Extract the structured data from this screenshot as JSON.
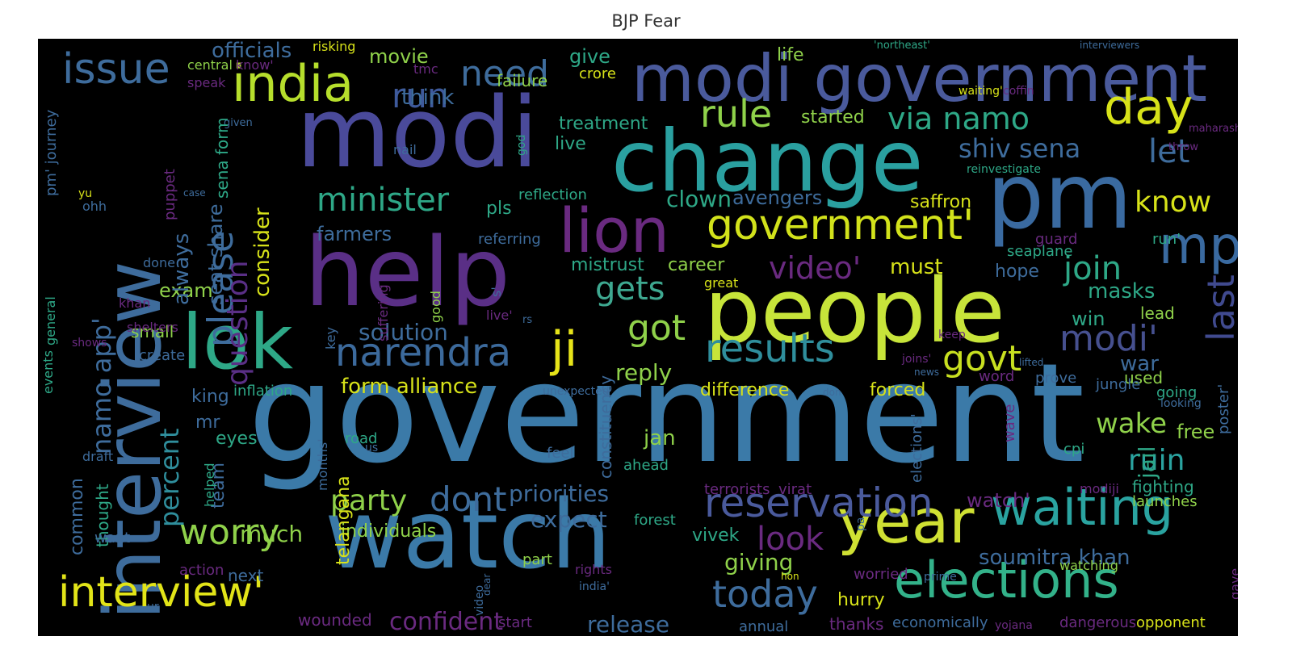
{
  "title": "BJP  Fear",
  "words": [
    {
      "text": "government",
      "color": "#3b7aa8"
    },
    {
      "text": "modi",
      "color": "#4a4a9a"
    },
    {
      "text": "help",
      "color": "#5a2f86"
    },
    {
      "text": "people",
      "color": "#c7e43a"
    },
    {
      "text": "watch",
      "color": "#3b7aa8"
    },
    {
      "text": "change",
      "color": "#2aa0a0"
    },
    {
      "text": "pm",
      "color": "#3a6aa0"
    },
    {
      "text": "interview",
      "color": "#3e6c9c"
    },
    {
      "text": "lok",
      "color": "#2ea887"
    },
    {
      "text": "modi government",
      "color": "#4a5a9c"
    },
    {
      "text": "year",
      "color": "#cfe033"
    },
    {
      "text": "elections",
      "color": "#33b28a"
    },
    {
      "text": "lion",
      "color": "#6a2a80"
    },
    {
      "text": "waiting",
      "color": "#2aa3a0"
    },
    {
      "text": "mp",
      "color": "#3a6aa0"
    },
    {
      "text": "india",
      "color": "#b6de2c"
    },
    {
      "text": "ji",
      "color": "#e7e419"
    },
    {
      "text": "interview'",
      "color": "#e2e418"
    },
    {
      "text": "government'",
      "color": "#d2e21b"
    },
    {
      "text": "day",
      "color": "#d7e219"
    },
    {
      "text": "results",
      "color": "#2f8e9c"
    },
    {
      "text": "issue",
      "color": "#3e6c9c"
    },
    {
      "text": "narendra",
      "color": "#3c6a9c"
    },
    {
      "text": "reservation",
      "color": "#4a5a9c"
    },
    {
      "text": "please",
      "color": "#3e6c9c"
    },
    {
      "text": "worry",
      "color": "#8fd14a"
    },
    {
      "text": "last",
      "color": "#404a8f"
    },
    {
      "text": "modi'",
      "color": "#46508f"
    },
    {
      "text": "today",
      "color": "#3e6c9c"
    },
    {
      "text": "govt",
      "color": "#c8e020"
    },
    {
      "text": "rule",
      "color": "#8fd14a"
    },
    {
      "text": "need",
      "color": "#3e6c9c"
    },
    {
      "text": "run",
      "color": "#3e5a9c"
    },
    {
      "text": "via namo",
      "color": "#2ea887"
    },
    {
      "text": "shiv sena",
      "color": "#3e6c9c"
    },
    {
      "text": "minister",
      "color": "#2ea887"
    },
    {
      "text": "video'",
      "color": "#6a2a80"
    },
    {
      "text": "got",
      "color": "#8fd14a"
    },
    {
      "text": "gets",
      "color": "#3ea890"
    },
    {
      "text": "join",
      "color": "#2ea887"
    },
    {
      "text": "know",
      "color": "#d7e219"
    },
    {
      "text": "let",
      "color": "#3e6c9c"
    },
    {
      "text": "wake",
      "color": "#8fd14a"
    },
    {
      "text": "ruin",
      "color": "#2aa3a0"
    },
    {
      "text": "question",
      "color": "#5a2f86"
    },
    {
      "text": "namo app'",
      "color": "#3e6c9c"
    },
    {
      "text": "percent",
      "color": "#2f8e9c"
    },
    {
      "text": "dont",
      "color": "#3e6c9c"
    },
    {
      "text": "party",
      "color": "#8fd14a"
    },
    {
      "text": "look",
      "color": "#6a2a80"
    },
    {
      "text": "confident",
      "color": "#6a2a80"
    },
    {
      "text": "release",
      "color": "#3e6c9c"
    },
    {
      "text": "soumitra khan",
      "color": "#3e6c9c"
    },
    {
      "text": "priorities",
      "color": "#3e6c9c"
    },
    {
      "text": "expect",
      "color": "#3e6c9c"
    },
    {
      "text": "giving",
      "color": "#8fd14a"
    },
    {
      "text": "much",
      "color": "#8fd14a"
    },
    {
      "text": "solution",
      "color": "#3e6c9c"
    },
    {
      "text": "form alliance",
      "color": "#d7e219"
    },
    {
      "text": "reply",
      "color": "#8fd14a"
    },
    {
      "text": "jan",
      "color": "#8fd14a"
    },
    {
      "text": "exam",
      "color": "#8fd14a"
    },
    {
      "text": "movie",
      "color": "#8fd14a"
    },
    {
      "text": "give",
      "color": "#2ea887"
    },
    {
      "text": "think",
      "color": "#3e6c9c"
    },
    {
      "text": "officials",
      "color": "#3e6c9c"
    },
    {
      "text": "clown",
      "color": "#2ea887"
    },
    {
      "text": "avengers",
      "color": "#3e6c9c"
    },
    {
      "text": "saffron",
      "color": "#d7e219"
    },
    {
      "text": "farmers",
      "color": "#3e6c9c"
    },
    {
      "text": "pls",
      "color": "#2ea887"
    },
    {
      "text": "mistrust",
      "color": "#2ea887"
    },
    {
      "text": "career",
      "color": "#8fd14a"
    },
    {
      "text": "must",
      "color": "#d7e219"
    },
    {
      "text": "hope",
      "color": "#3e6c9c"
    },
    {
      "text": "masks",
      "color": "#2ea887"
    },
    {
      "text": "win",
      "color": "#2ea887"
    },
    {
      "text": "lead",
      "color": "#8fd14a"
    },
    {
      "text": "war",
      "color": "#3e6c9c"
    },
    {
      "text": "used",
      "color": "#8fd14a"
    },
    {
      "text": "difference",
      "color": "#d7e219"
    },
    {
      "text": "forced",
      "color": "#d7e219"
    },
    {
      "text": "jail",
      "color": "#2ea887"
    },
    {
      "text": "free",
      "color": "#8fd14a"
    },
    {
      "text": "fighting",
      "color": "#2ea887"
    },
    {
      "text": "watch'",
      "color": "#6a2a80"
    },
    {
      "text": "individuals",
      "color": "#8fd14a"
    },
    {
      "text": "vivek",
      "color": "#2ea887"
    },
    {
      "text": "hurry",
      "color": "#d7e219"
    },
    {
      "text": "thanks",
      "color": "#6a2a80"
    },
    {
      "text": "economically",
      "color": "#3e6c9c"
    },
    {
      "text": "dangerous",
      "color": "#6a2a80"
    },
    {
      "text": "opponent",
      "color": "#d7e219"
    },
    {
      "text": "eyes",
      "color": "#2ea887"
    },
    {
      "text": "king",
      "color": "#3e6c9c"
    },
    {
      "text": "mr",
      "color": "#3e6c9c"
    },
    {
      "text": "small",
      "color": "#8fd14a"
    },
    {
      "text": "create",
      "color": "#3e6c9c"
    },
    {
      "text": "common",
      "color": "#3e6c9c"
    },
    {
      "text": "thought",
      "color": "#2ea887"
    },
    {
      "text": "team",
      "color": "#3e6c9c"
    },
    {
      "text": "next",
      "color": "#3e6c9c"
    },
    {
      "text": "telangana",
      "color": "#d7e219"
    },
    {
      "text": "wounded",
      "color": "#6a2a80"
    },
    {
      "text": "start",
      "color": "#6a2a80"
    },
    {
      "text": "annual",
      "color": "#3e6c9c"
    },
    {
      "text": "yojana",
      "color": "#6a2a80"
    },
    {
      "text": "treatment",
      "color": "#2ea887"
    },
    {
      "text": "live",
      "color": "#2ea887"
    },
    {
      "text": "started",
      "color": "#8fd14a"
    },
    {
      "text": "life",
      "color": "#8fd14a"
    },
    {
      "text": "crore",
      "color": "#d7e219"
    },
    {
      "text": "failure",
      "color": "#8fd14a"
    },
    {
      "text": "reflection",
      "color": "#2ea887"
    },
    {
      "text": "referring",
      "color": "#3e6c9c"
    },
    {
      "text": "inflation",
      "color": "#2ea887"
    },
    {
      "text": "road",
      "color": "#2ea887"
    },
    {
      "text": "feel",
      "color": "#3e6c9c"
    },
    {
      "text": "ahead",
      "color": "#2ea887"
    },
    {
      "text": "part",
      "color": "#8fd14a"
    },
    {
      "text": "forest",
      "color": "#2ea887"
    },
    {
      "text": "terrorists",
      "color": "#6a2a80"
    },
    {
      "text": "virat",
      "color": "#6a2a80"
    },
    {
      "text": "modiji",
      "color": "#6a2a80"
    },
    {
      "text": "launches",
      "color": "#8fd14a"
    },
    {
      "text": "watching",
      "color": "#8fd14a"
    },
    {
      "text": "worried",
      "color": "#6a2a80"
    },
    {
      "text": "word",
      "color": "#6a2a80"
    },
    {
      "text": "jungle",
      "color": "#3e6c9c"
    },
    {
      "text": "going",
      "color": "#2ea887"
    },
    {
      "text": "prove",
      "color": "#3e6c9c"
    },
    {
      "text": "cpi",
      "color": "#2ea887"
    },
    {
      "text": "guard",
      "color": "#6a2a80"
    },
    {
      "text": "seaplane",
      "color": "#2ea887"
    },
    {
      "text": "run'",
      "color": "#2ea887"
    },
    {
      "text": "know'",
      "color": "#6a2a80"
    },
    {
      "text": "central",
      "color": "#8fd14a"
    },
    {
      "text": "risking",
      "color": "#d7e219"
    },
    {
      "text": "tmc",
      "color": "#6a2a80"
    },
    {
      "text": "speak",
      "color": "#6a2a80"
    },
    {
      "text": "nail",
      "color": "#3e6c9c"
    },
    {
      "text": "god",
      "color": "#2ea887"
    },
    {
      "text": "waiting'",
      "color": "#d7e219"
    },
    {
      "text": "coffin",
      "color": "#6a2a80"
    },
    {
      "text": "'northeast'",
      "color": "#2ea887"
    },
    {
      "text": "interviewers",
      "color": "#3e6c9c"
    },
    {
      "text": "maharashtra",
      "color": "#6a2a80"
    },
    {
      "text": "throw",
      "color": "#6a2a80"
    },
    {
      "text": "vacancy'",
      "color": "#6a2a80"
    },
    {
      "text": "reinvestigate",
      "color": "#2ea887"
    },
    {
      "text": "yu",
      "color": "#d7e219"
    },
    {
      "text": "ohh",
      "color": "#3e6c9c"
    },
    {
      "text": "case",
      "color": "#3e6c9c"
    },
    {
      "text": "done",
      "color": "#3e6c9c"
    },
    {
      "text": "khan",
      "color": "#6a2a80"
    },
    {
      "text": "shelters",
      "color": "#6a2a80"
    },
    {
      "text": "shows",
      "color": "#6a2a80"
    },
    {
      "text": "draft",
      "color": "#3e6c9c"
    },
    {
      "text": "want",
      "color": "#3e6c9c"
    },
    {
      "text": "helped",
      "color": "#2ea887"
    },
    {
      "text": "action",
      "color": "#6a2a80"
    },
    {
      "text": "ur",
      "color": "#3e6c9c"
    },
    {
      "text": "months'",
      "color": "#3e6c9c"
    },
    {
      "text": "us",
      "color": "#3e6c9c"
    },
    {
      "text": "key",
      "color": "#3e6c9c"
    },
    {
      "text": "rs",
      "color": "#3e6c9c"
    },
    {
      "text": "great",
      "color": "#d7e219"
    },
    {
      "text": "live'",
      "color": "#6a2a80"
    },
    {
      "text": "s'",
      "color": "#3e6c9c"
    },
    {
      "text": "good",
      "color": "#8fd14a"
    },
    {
      "text": "suffering",
      "color": "#6a2a80"
    },
    {
      "text": "given",
      "color": "#3e6c9c"
    },
    {
      "text": "puppet",
      "color": "#6a2a80"
    },
    {
      "text": "always",
      "color": "#3e6c9c"
    },
    {
      "text": "seat share",
      "color": "#3e6c9c"
    },
    {
      "text": "sena form",
      "color": "#2ea887"
    },
    {
      "text": "consider",
      "color": "#d7e219"
    },
    {
      "text": "pm' journey",
      "color": "#3e6c9c"
    },
    {
      "text": "general",
      "color": "#2ea887"
    },
    {
      "text": "events",
      "color": "#2ea887"
    },
    {
      "text": "constituency",
      "color": "#3e6c9c"
    },
    {
      "text": "unexpected",
      "color": "#3e6c9c"
    },
    {
      "text": "joins'",
      "color": "#6a2a80"
    },
    {
      "text": "news",
      "color": "#3e6c9c"
    },
    {
      "text": "lifted",
      "color": "#3e6c9c"
    },
    {
      "text": "keep",
      "color": "#6a2a80"
    },
    {
      "text": "don",
      "color": "#3e6c9c"
    },
    {
      "text": "looking",
      "color": "#3e6c9c"
    },
    {
      "text": "poster'",
      "color": "#3e6c9c"
    },
    {
      "text": "elections'",
      "color": "#3e6c9c"
    },
    {
      "text": "wave",
      "color": "#6a2a80"
    },
    {
      "text": "gave",
      "color": "#6a2a80"
    },
    {
      "text": "rights",
      "color": "#6a2a80"
    },
    {
      "text": "india'",
      "color": "#3e6c9c"
    },
    {
      "text": "hon",
      "color": "#d7e219"
    },
    {
      "text": "prime",
      "color": "#3e6c9c"
    },
    {
      "text": "pa",
      "color": "#3e6c9c"
    },
    {
      "text": "video",
      "color": "#3e6c9c"
    },
    {
      "text": "dear",
      "color": "#3e6c9c"
    }
  ]
}
